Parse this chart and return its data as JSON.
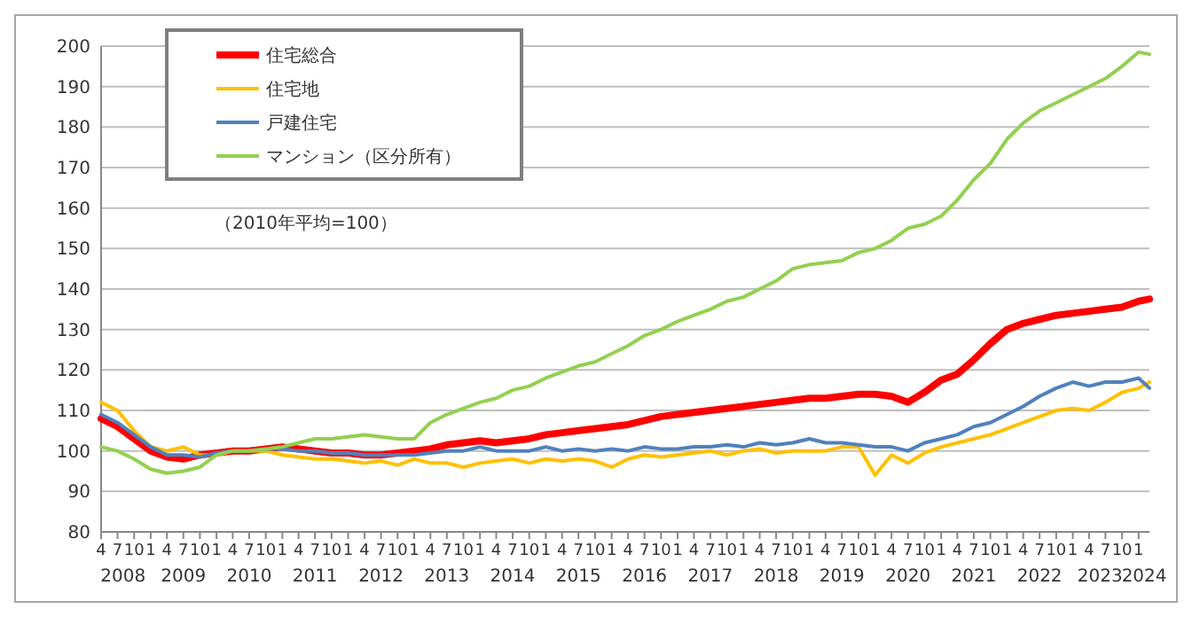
{
  "chart_data": {
    "type": "line",
    "subtitle": "（2010年平均=100）",
    "legend": "top left",
    "grid": "y",
    "line_style": "solid",
    "marker": "none",
    "x": [
      "2008-04",
      "2008-07",
      "2008-10",
      "2009-01",
      "2009-04",
      "2009-07",
      "2009-10",
      "2010-01",
      "2010-04",
      "2010-07",
      "2010-10",
      "2011-01",
      "2011-04",
      "2011-07",
      "2011-10",
      "2012-01",
      "2012-04",
      "2012-07",
      "2012-10",
      "2013-01",
      "2013-04",
      "2013-07",
      "2013-10",
      "2014-01",
      "2014-04",
      "2014-07",
      "2014-10",
      "2015-01",
      "2015-04",
      "2015-07",
      "2015-10",
      "2016-01",
      "2016-04",
      "2016-07",
      "2016-10",
      "2017-01",
      "2017-04",
      "2017-07",
      "2017-10",
      "2018-01",
      "2018-04",
      "2018-07",
      "2018-10",
      "2019-01",
      "2019-04",
      "2019-07",
      "2019-10",
      "2020-01",
      "2020-04",
      "2020-07",
      "2020-10",
      "2021-01",
      "2021-04",
      "2021-07",
      "2021-10",
      "2022-01",
      "2022-04",
      "2022-07",
      "2022-10",
      "2023-01",
      "2023-04",
      "2023-07",
      "2023-10",
      "2024-01",
      "2024-03"
    ],
    "series": [
      {
        "name": "住宅総合",
        "color": "#ff0000",
        "values": [
          108,
          106,
          103,
          100,
          98.5,
          98,
          99,
          99.5,
          100,
          100,
          100.5,
          101,
          100.5,
          100,
          99.5,
          99.5,
          99,
          99,
          99.5,
          100,
          100.5,
          101.5,
          102,
          102.5,
          102,
          102.5,
          103,
          104,
          104.5,
          105,
          105.5,
          106,
          106.5,
          107.5,
          108.5,
          109,
          109.5,
          110,
          110.5,
          111,
          111.5,
          112,
          112.5,
          113,
          113,
          113.5,
          114,
          114,
          113.5,
          112,
          114.5,
          117.5,
          119,
          122.5,
          126.5,
          130,
          131.5,
          132.5,
          133.5,
          134,
          134.5,
          135,
          135.5,
          137,
          137.5
        ]
      },
      {
        "name": "住宅地",
        "color": "#ffc000",
        "values": [
          112,
          110,
          105,
          101,
          100,
          101,
          99,
          99,
          100,
          100,
          100,
          99,
          98.5,
          98,
          98,
          97.5,
          97,
          97.5,
          96.5,
          98,
          97,
          97,
          96,
          97,
          97.5,
          98,
          97,
          98,
          97.5,
          98,
          97.5,
          96,
          98,
          99,
          98.5,
          99,
          99.5,
          100,
          99,
          100,
          100.5,
          99.5,
          100,
          100,
          100,
          101,
          101,
          94,
          99,
          97,
          99.5,
          101,
          102,
          103,
          104,
          105.5,
          107,
          108.5,
          110,
          110.5,
          110,
          112,
          114.5,
          115.5,
          117
        ]
      },
      {
        "name": "戸建住宅",
        "color": "#4f81bd",
        "values": [
          109,
          107,
          104,
          101,
          99,
          99,
          98.5,
          99.5,
          100,
          100,
          100.5,
          100.5,
          100,
          100,
          99.5,
          99.5,
          99,
          99,
          99,
          99,
          99.5,
          100,
          100,
          101,
          100,
          100,
          100,
          101,
          100,
          100.5,
          100,
          100.5,
          100,
          101,
          100.5,
          100.5,
          101,
          101,
          101.5,
          101,
          102,
          101.5,
          102,
          103,
          102,
          102,
          101.5,
          101,
          101,
          100,
          102,
          103,
          104,
          106,
          107,
          109,
          111,
          113.5,
          115.5,
          117,
          116,
          117,
          117,
          118,
          115.5
        ]
      },
      {
        "name": "マンション（区分所有）",
        "color": "#92d050",
        "values": [
          101,
          100,
          98,
          95.5,
          94.5,
          95,
          96,
          99,
          100,
          100,
          100.5,
          101,
          102,
          103,
          103,
          103.5,
          104,
          103.5,
          103,
          103,
          107,
          109,
          110.5,
          112,
          113,
          115,
          116,
          118,
          119.5,
          121,
          122,
          124,
          126,
          128.5,
          130,
          132,
          133.5,
          135,
          137,
          138,
          140,
          142,
          145,
          146,
          146.5,
          147,
          149,
          150,
          152,
          155,
          156,
          158,
          162,
          167,
          171,
          177,
          181,
          184,
          186,
          188,
          190,
          192,
          195,
          198.5,
          198
        ]
      }
    ],
    "xlim": [
      "2008-04",
      "2024-03"
    ],
    "xticks": [
      {
        "value": "2008-04",
        "label": "4"
      },
      {
        "value": "2008-07",
        "label": "7"
      },
      {
        "value": "2008-10",
        "label": "10"
      },
      {
        "value": "2009-01",
        "label": "1"
      },
      {
        "value": "2009-04",
        "label": "4"
      },
      {
        "value": "2009-07",
        "label": "7"
      },
      {
        "value": "2009-10",
        "label": "10"
      },
      {
        "value": "2010-01",
        "label": "1"
      },
      {
        "value": "2010-04",
        "label": "4"
      },
      {
        "value": "2010-07",
        "label": "7"
      },
      {
        "value": "2010-10",
        "label": "10"
      },
      {
        "value": "2011-01",
        "label": "1"
      },
      {
        "value": "2011-04",
        "label": "4"
      },
      {
        "value": "2011-07",
        "label": "7"
      },
      {
        "value": "2011-10",
        "label": "10"
      },
      {
        "value": "2012-01",
        "label": "1"
      },
      {
        "value": "2012-04",
        "label": "4"
      },
      {
        "value": "2012-07",
        "label": "7"
      },
      {
        "value": "2012-10",
        "label": "10"
      },
      {
        "value": "2013-01",
        "label": "1"
      },
      {
        "value": "2013-04",
        "label": "4"
      },
      {
        "value": "2013-07",
        "label": "7"
      },
      {
        "value": "2013-10",
        "label": "10"
      },
      {
        "value": "2014-01",
        "label": "1"
      },
      {
        "value": "2014-04",
        "label": "4"
      },
      {
        "value": "2014-07",
        "label": "7"
      },
      {
        "value": "2014-10",
        "label": "10"
      },
      {
        "value": "2015-01",
        "label": "1"
      },
      {
        "value": "2015-04",
        "label": "4"
      },
      {
        "value": "2015-07",
        "label": "7"
      },
      {
        "value": "2015-10",
        "label": "10"
      },
      {
        "value": "2016-01",
        "label": "1"
      },
      {
        "value": "2016-04",
        "label": "4"
      },
      {
        "value": "2016-07",
        "label": "7"
      },
      {
        "value": "2016-10",
        "label": "10"
      },
      {
        "value": "2017-01",
        "label": "1"
      },
      {
        "value": "2017-04",
        "label": "4"
      },
      {
        "value": "2017-07",
        "label": "7"
      },
      {
        "value": "2017-10",
        "label": "10"
      },
      {
        "value": "2018-01",
        "label": "1"
      },
      {
        "value": "2018-04",
        "label": "4"
      },
      {
        "value": "2018-07",
        "label": "7"
      },
      {
        "value": "2018-10",
        "label": "10"
      },
      {
        "value": "2019-01",
        "label": "1"
      },
      {
        "value": "2019-04",
        "label": "4"
      },
      {
        "value": "2019-07",
        "label": "7"
      },
      {
        "value": "2019-10",
        "label": "10"
      },
      {
        "value": "2020-01",
        "label": "1"
      },
      {
        "value": "2020-04",
        "label": "4"
      },
      {
        "value": "2020-07",
        "label": "7"
      },
      {
        "value": "2020-10",
        "label": "10"
      },
      {
        "value": "2021-01",
        "label": "1"
      },
      {
        "value": "2021-04",
        "label": "4"
      },
      {
        "value": "2021-07",
        "label": "7"
      },
      {
        "value": "2021-10",
        "label": "10"
      },
      {
        "value": "2022-01",
        "label": "1"
      },
      {
        "value": "2022-04",
        "label": "4"
      },
      {
        "value": "2022-07",
        "label": "7"
      },
      {
        "value": "2022-10",
        "label": "10"
      },
      {
        "value": "2023-01",
        "label": "1"
      },
      {
        "value": "2023-04",
        "label": "4"
      },
      {
        "value": "2023-07",
        "label": "7"
      },
      {
        "value": "2023-10",
        "label": "10"
      },
      {
        "value": "2024-01",
        "label": "1"
      }
    ],
    "ylim": [
      80,
      200
    ],
    "yticks": [
      80,
      90,
      100,
      110,
      120,
      130,
      140,
      150,
      160,
      170,
      180,
      190,
      200
    ],
    "x2lim": [
      "2008-04",
      "2024-03"
    ],
    "x2ticks": [
      {
        "value": "2008-08",
        "label": "2008"
      },
      {
        "value": "2009-07",
        "label": "2009"
      },
      {
        "value": "2010-07",
        "label": "2010"
      },
      {
        "value": "2011-07",
        "label": "2011"
      },
      {
        "value": "2012-07",
        "label": "2012"
      },
      {
        "value": "2013-07",
        "label": "2013"
      },
      {
        "value": "2014-07",
        "label": "2014"
      },
      {
        "value": "2015-07",
        "label": "2015"
      },
      {
        "value": "2016-07",
        "label": "2016"
      },
      {
        "value": "2017-07",
        "label": "2017"
      },
      {
        "value": "2018-07",
        "label": "2018"
      },
      {
        "value": "2019-07",
        "label": "2019"
      },
      {
        "value": "2020-07",
        "label": "2020"
      },
      {
        "value": "2021-07",
        "label": "2021"
      },
      {
        "value": "2022-07",
        "label": "2022"
      },
      {
        "value": "2023-06",
        "label": "2023"
      },
      {
        "value": "2024-02",
        "label": "2024"
      }
    ]
  }
}
